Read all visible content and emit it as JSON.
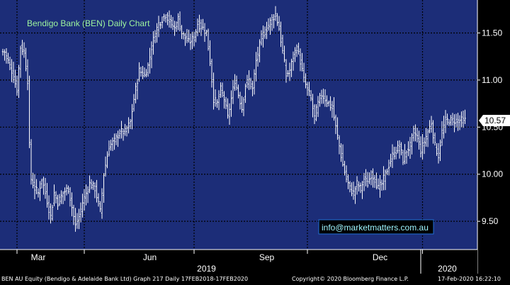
{
  "chart_data": {
    "type": "ohlc",
    "title": "Bendigo Bank (BEN) Daily Chart",
    "watermark": "info@marketmatters.com.au",
    "ylim": [
      9.2,
      11.85
    ],
    "y_ticks": [
      9.5,
      10.0,
      10.5,
      11.0,
      11.5
    ],
    "y_tick_labels": [
      "9.50",
      "10.00",
      "10.50",
      "11.00",
      "11.50"
    ],
    "last_price": 10.57,
    "last_price_label": "10.57",
    "month_labels": [
      {
        "label": "Mar",
        "index": 20
      },
      {
        "label": "Jun",
        "index": 83
      },
      {
        "label": "Sep",
        "index": 149
      },
      {
        "label": "Dec",
        "index": 213
      }
    ],
    "year_labels": [
      {
        "label": "2019",
        "index": 115
      },
      {
        "label": "2020",
        "index": 251
      }
    ],
    "month_separators": [
      8,
      46,
      108,
      172,
      237
    ],
    "year_separators": [
      236
    ],
    "num_bars": 262,
    "series": [
      {
        "values": [
          [
            1,
            11.3
          ],
          [
            3,
            11.2
          ],
          [
            5,
            11.1
          ],
          [
            8,
            10.9
          ],
          [
            10,
            11.35
          ],
          [
            12,
            11.3
          ],
          [
            14,
            11.0
          ],
          [
            15,
            10.3
          ],
          [
            16,
            9.95
          ],
          [
            18,
            9.85
          ],
          [
            20,
            9.8
          ],
          [
            22,
            9.95
          ],
          [
            24,
            9.8
          ],
          [
            27,
            9.55
          ],
          [
            29,
            9.8
          ],
          [
            31,
            9.7
          ],
          [
            34,
            9.8
          ],
          [
            37,
            9.85
          ],
          [
            39,
            9.65
          ],
          [
            41,
            9.45
          ],
          [
            43,
            9.55
          ],
          [
            45,
            9.7
          ],
          [
            47,
            9.8
          ],
          [
            49,
            9.9
          ],
          [
            52,
            9.85
          ],
          [
            55,
            9.6
          ],
          [
            57,
            10.0
          ],
          [
            60,
            10.3
          ],
          [
            63,
            10.35
          ],
          [
            66,
            10.45
          ],
          [
            69,
            10.45
          ],
          [
            72,
            10.55
          ],
          [
            74,
            10.8
          ],
          [
            77,
            11.1
          ],
          [
            80,
            11.05
          ],
          [
            82,
            11.15
          ],
          [
            84,
            11.35
          ],
          [
            86,
            11.5
          ],
          [
            88,
            11.6
          ],
          [
            90,
            11.65
          ],
          [
            92,
            11.7
          ],
          [
            95,
            11.6
          ],
          [
            97,
            11.55
          ],
          [
            99,
            11.65
          ],
          [
            101,
            11.5
          ],
          [
            103,
            11.45
          ],
          [
            105,
            11.4
          ],
          [
            108,
            11.45
          ],
          [
            110,
            11.6
          ],
          [
            113,
            11.55
          ],
          [
            115,
            11.5
          ],
          [
            117,
            11.2
          ],
          [
            119,
            10.8
          ],
          [
            121,
            10.75
          ],
          [
            123,
            10.9
          ],
          [
            125,
            10.8
          ],
          [
            127,
            10.6
          ],
          [
            129,
            10.8
          ],
          [
            131,
            11.0
          ],
          [
            133,
            10.85
          ],
          [
            135,
            10.7
          ],
          [
            137,
            10.95
          ],
          [
            139,
            11.0
          ],
          [
            141,
            10.9
          ],
          [
            143,
            11.2
          ],
          [
            146,
            11.45
          ],
          [
            149,
            11.55
          ],
          [
            152,
            11.65
          ],
          [
            154,
            11.7
          ],
          [
            156,
            11.55
          ],
          [
            158,
            11.3
          ],
          [
            160,
            11.05
          ],
          [
            162,
            11.1
          ],
          [
            164,
            11.25
          ],
          [
            166,
            11.35
          ],
          [
            168,
            11.2
          ],
          [
            170,
            11.0
          ],
          [
            172,
            10.9
          ],
          [
            174,
            10.8
          ],
          [
            176,
            10.6
          ],
          [
            178,
            10.75
          ],
          [
            180,
            10.85
          ],
          [
            182,
            10.8
          ],
          [
            184,
            10.75
          ],
          [
            186,
            10.7
          ],
          [
            188,
            10.5
          ],
          [
            190,
            10.3
          ],
          [
            192,
            10.1
          ],
          [
            194,
            9.95
          ],
          [
            196,
            9.85
          ],
          [
            198,
            9.8
          ],
          [
            200,
            9.9
          ],
          [
            202,
            9.85
          ],
          [
            204,
            9.95
          ],
          [
            206,
            9.9
          ],
          [
            208,
            10.0
          ],
          [
            210,
            9.95
          ],
          [
            212,
            9.85
          ],
          [
            214,
            9.9
          ],
          [
            216,
            10.0
          ],
          [
            218,
            10.1
          ],
          [
            220,
            10.2
          ],
          [
            222,
            10.25
          ],
          [
            224,
            10.3
          ],
          [
            226,
            10.15
          ],
          [
            228,
            10.25
          ],
          [
            230,
            10.3
          ],
          [
            232,
            10.45
          ],
          [
            234,
            10.4
          ],
          [
            236,
            10.25
          ],
          [
            238,
            10.35
          ],
          [
            240,
            10.45
          ],
          [
            242,
            10.55
          ],
          [
            244,
            10.3
          ],
          [
            246,
            10.2
          ],
          [
            248,
            10.45
          ],
          [
            250,
            10.57
          ],
          [
            252,
            10.57
          ]
        ]
      }
    ]
  },
  "footer": {
    "security": "BEN AU Equity (Bendigo & Adelaide Bank Ltd) Graph 217  Daily 17FEB2018-17FEB2020",
    "copyright": "Copyright© 2020 Bloomberg Finance L.P.",
    "timestamp": "17-Feb-2020 16:22:10"
  },
  "colors": {
    "plot_bg": "#1c2d78",
    "grid": "#000000",
    "bars": "#ffffff",
    "title": "#9ef59e",
    "watermark_border": "#1f6fd6",
    "watermark_text": "#9ef5ff",
    "axis_text": "#ffffff",
    "price_tag_bg": "#ffffff",
    "price_tag_text": "#000000",
    "axis_bg": "#000000"
  }
}
